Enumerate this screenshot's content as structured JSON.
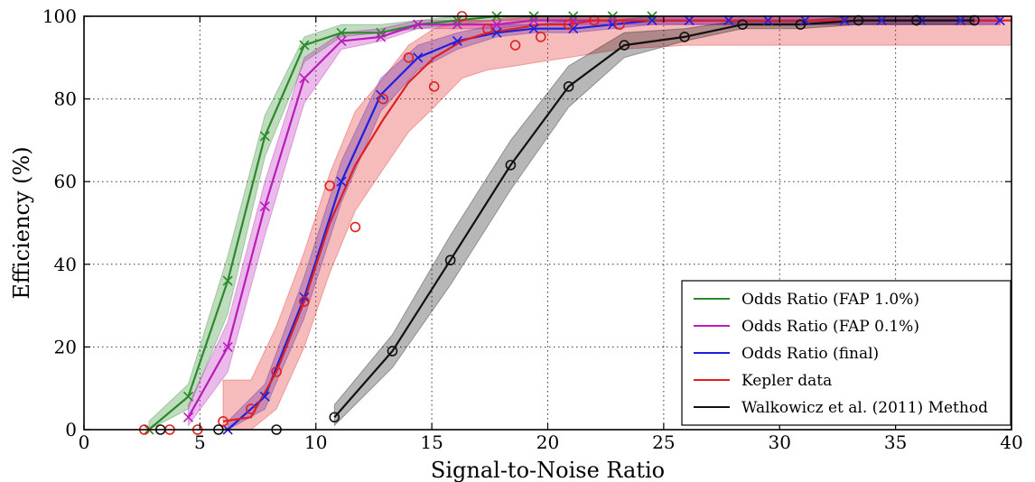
{
  "chart_data": {
    "type": "line",
    "title": "",
    "xlabel": "Signal-to-Noise Ratio",
    "ylabel": "Efficiency (%)",
    "xlim": [
      0,
      40
    ],
    "ylim": [
      0,
      100
    ],
    "xticks": [
      "0",
      "5",
      "10",
      "15",
      "20",
      "25",
      "30",
      "35",
      "40"
    ],
    "yticks": [
      "0",
      "20",
      "40",
      "60",
      "80",
      "100"
    ],
    "grid": "dotted",
    "legend_position": "lower-right",
    "series": [
      {
        "name": "Odds Ratio (FAP 1.0%)",
        "color": "#2a8a2a",
        "marker": "x",
        "x": [
          2.8,
          4.5,
          6.2,
          7.8,
          9.5,
          11.1,
          12.8,
          14.4,
          16.1,
          17.8,
          19.4,
          21.1,
          22.8,
          24.5
        ],
        "y": [
          0,
          8,
          36,
          71,
          93,
          96,
          96,
          98,
          99,
          100,
          100,
          100,
          100,
          100
        ],
        "band_lower": [
          0,
          5,
          28,
          66,
          89,
          95,
          96,
          97,
          98,
          99,
          99,
          99,
          99,
          99
        ],
        "band_upper": [
          2,
          11,
          42,
          76,
          95,
          98,
          98,
          99,
          100,
          100,
          100,
          100,
          100,
          100
        ]
      },
      {
        "name": "Odds Ratio (FAP 0.1%)",
        "color": "#bb1bbb",
        "marker": "x",
        "x": [
          4.5,
          6.2,
          7.8,
          9.5,
          11.1,
          12.8,
          14.4,
          16.1,
          17.8,
          19.4,
          21.1,
          22.8,
          24.5,
          26.1,
          27.8,
          29.5,
          31.1,
          32.8,
          34.4,
          36.1,
          37.8,
          39.5
        ],
        "y": [
          3,
          20,
          54,
          85,
          94,
          95,
          98,
          98,
          98,
          99,
          99,
          99,
          99,
          99,
          99,
          99,
          99,
          99,
          99,
          99,
          99,
          99
        ],
        "band_lower": [
          1,
          14,
          47,
          79,
          92,
          94,
          97,
          97,
          97,
          98,
          98,
          98,
          98,
          98,
          98,
          98,
          98,
          98,
          98,
          98,
          98,
          98
        ],
        "band_upper": [
          6,
          26,
          60,
          90,
          96,
          97,
          99,
          99,
          99,
          100,
          100,
          100,
          100,
          100,
          100,
          100,
          100,
          100,
          100,
          100,
          100,
          100
        ]
      },
      {
        "name": "Odds Ratio (final)",
        "color": "#1f1fdd",
        "marker": "x",
        "x": [
          6.2,
          7.8,
          9.5,
          11.1,
          12.8,
          14.4,
          16.1,
          17.8,
          19.4,
          21.1,
          22.8,
          24.5,
          26.1,
          27.8,
          29.5,
          31.1,
          32.8,
          34.4,
          36.1,
          37.8,
          39.5
        ],
        "y": [
          0,
          8,
          32,
          60,
          81,
          90,
          94,
          96,
          97,
          97,
          98,
          99,
          99,
          99,
          99,
          99,
          99,
          99,
          99,
          99,
          99
        ],
        "band_lower": [
          0,
          5,
          27,
          55,
          77,
          87,
          92,
          95,
          96,
          96,
          97,
          98,
          98,
          98,
          98,
          98,
          98,
          98,
          98,
          98,
          98
        ],
        "band_upper": [
          2,
          11,
          37,
          65,
          85,
          93,
          96,
          98,
          98,
          99,
          99,
          100,
          100,
          100,
          100,
          100,
          100,
          100,
          100,
          100,
          100
        ]
      },
      {
        "name": "Kepler data",
        "color": "#e02020",
        "marker": "o",
        "x": [
          2.6,
          3.7,
          4.9,
          6.0,
          7.2,
          8.3,
          9.5,
          10.6,
          11.7,
          12.9,
          14.0,
          15.1,
          16.3,
          17.4,
          18.6,
          19.7,
          20.9,
          22.0,
          23.1
        ],
        "y": [
          0,
          0,
          0,
          2,
          5,
          14,
          31,
          59,
          49,
          80,
          90,
          83,
          100,
          97,
          93,
          95,
          98,
          99,
          98
        ],
        "line_x": [
          6.0,
          7.2,
          8.3,
          9.5,
          10.6,
          11.7,
          12.9,
          14.0,
          15.1,
          16.3,
          17.4,
          18.6,
          19.7,
          20.9,
          22.0,
          23.1,
          26.0,
          30.0,
          35.0,
          40.0
        ],
        "line_y": [
          2,
          3,
          14,
          31,
          50,
          64,
          75,
          84,
          90,
          94,
          96,
          97,
          98,
          98,
          99,
          99,
          99,
          99,
          99,
          99
        ],
        "band_lower": [
          0,
          0,
          5,
          20,
          38,
          53,
          63,
          72,
          78,
          85,
          87,
          88,
          89,
          90,
          91,
          92,
          93,
          93,
          93,
          93
        ],
        "band_upper": [
          12,
          12,
          25,
          43,
          62,
          77,
          85,
          93,
          97,
          99,
          99,
          100,
          100,
          100,
          100,
          100,
          100,
          100,
          100,
          100
        ]
      },
      {
        "name": "Walkowicz et al. (2011) Method",
        "color": "#111111",
        "marker": "o",
        "x": [
          10.8,
          13.3,
          15.8,
          18.4,
          20.9,
          23.3,
          25.9,
          28.4,
          30.9,
          33.4,
          35.9,
          38.4
        ],
        "y": [
          3,
          19,
          41,
          64,
          83,
          93,
          95,
          98,
          98,
          99,
          99,
          99
        ],
        "band_lower": [
          1,
          15,
          35,
          58,
          78,
          90,
          94,
          97,
          97,
          98,
          98,
          98
        ],
        "band_upper": [
          6,
          23,
          47,
          70,
          88,
          96,
          97,
          99,
          99,
          100,
          100,
          100
        ],
        "extra_points_x": [
          3.3,
          5.8,
          8.3
        ],
        "extra_points_y": [
          0,
          0,
          0
        ]
      }
    ]
  }
}
